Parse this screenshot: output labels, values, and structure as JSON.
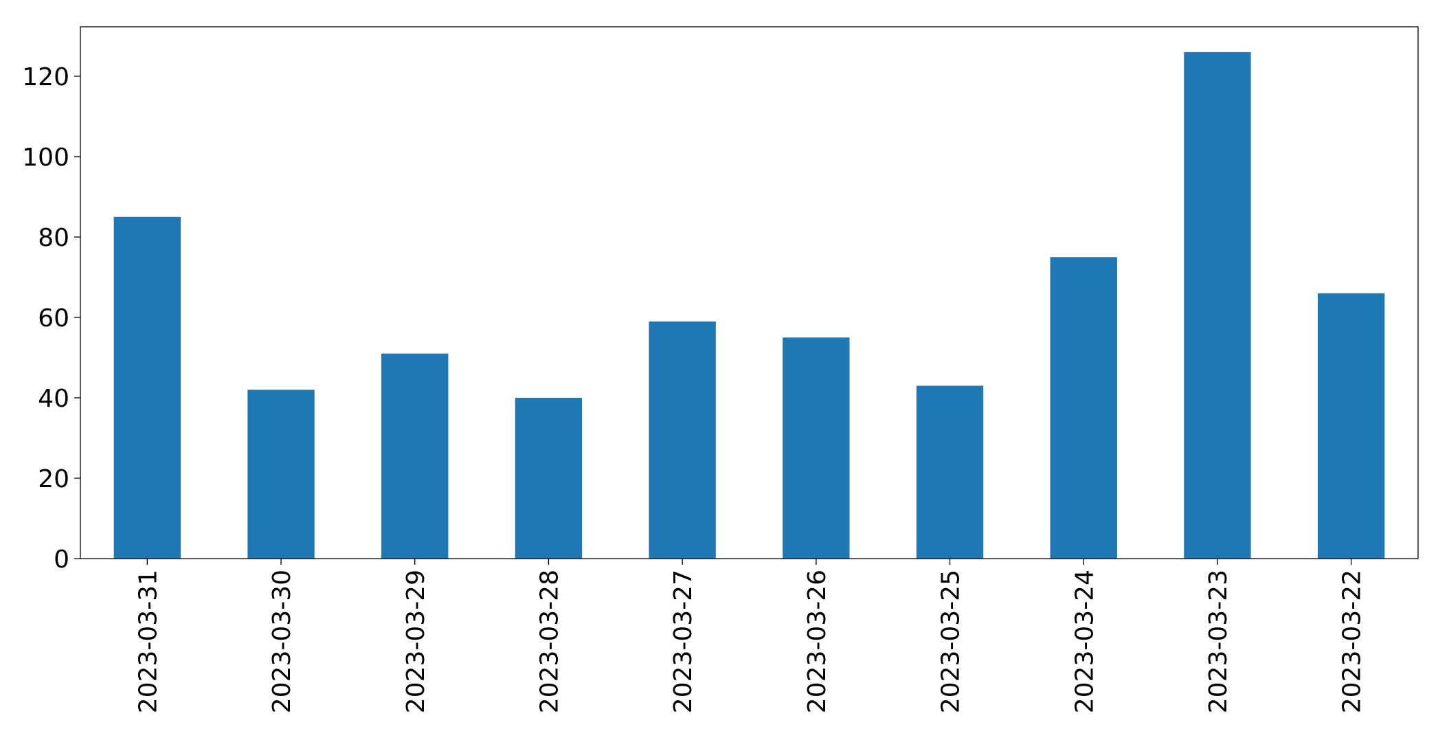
{
  "chart_data": {
    "type": "bar",
    "categories": [
      "2023-03-31",
      "2023-03-30",
      "2023-03-29",
      "2023-03-28",
      "2023-03-27",
      "2023-03-26",
      "2023-03-25",
      "2023-03-24",
      "2023-03-23",
      "2023-03-22"
    ],
    "values": [
      85,
      42,
      51,
      40,
      59,
      55,
      43,
      75,
      126,
      66
    ],
    "color": "#1f77b4",
    "ylim": [
      0,
      132.3
    ],
    "yticks": [
      0,
      20,
      40,
      60,
      80,
      100,
      120
    ],
    "grid": false
  }
}
